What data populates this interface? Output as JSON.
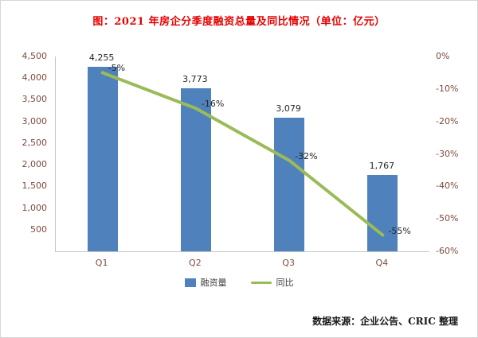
{
  "title": "图：2021 年房企分季度融资总量及同比情况（单位：亿元）",
  "source": "数据来源：企业公告、CRIC 整理",
  "colors": {
    "bar": "#4f81bd",
    "line": "#9bbb59",
    "title": "#e60000",
    "axis_text": "#7b4b3e",
    "value_text": "#262626"
  },
  "chart_data": {
    "type": "bar",
    "subtype": "bar+line combo",
    "title": "图：2021 年房企分季度融资总量及同比情况（单位：亿元）",
    "categories": [
      "Q1",
      "Q2",
      "Q3",
      "Q4"
    ],
    "series": [
      {
        "name": "融资量",
        "type": "bar",
        "axis": "left",
        "values": [
          4255,
          3773,
          3079,
          1767
        ],
        "labels": [
          "4,255",
          "3,773",
          "3,079",
          "1,767"
        ]
      },
      {
        "name": "同比",
        "type": "line",
        "axis": "right",
        "values": [
          -5,
          -16,
          -32,
          -55
        ],
        "labels": [
          "-5%",
          "-16%",
          "-32%",
          "-55%"
        ]
      }
    ],
    "left_axis": {
      "min": 0,
      "max": 4500,
      "ticks": [
        "4,500",
        "4,000",
        "3,500",
        "3,000",
        "2,500",
        "2,000",
        "1,500",
        "1,000",
        "500"
      ]
    },
    "right_axis": {
      "min": -60,
      "max": 0,
      "ticks": [
        "0%",
        "-10%",
        "-20%",
        "-30%",
        "-40%",
        "-50%",
        "-60%"
      ]
    },
    "grid": false,
    "legend_position": "bottom",
    "xlabel": "",
    "ylabel": ""
  }
}
